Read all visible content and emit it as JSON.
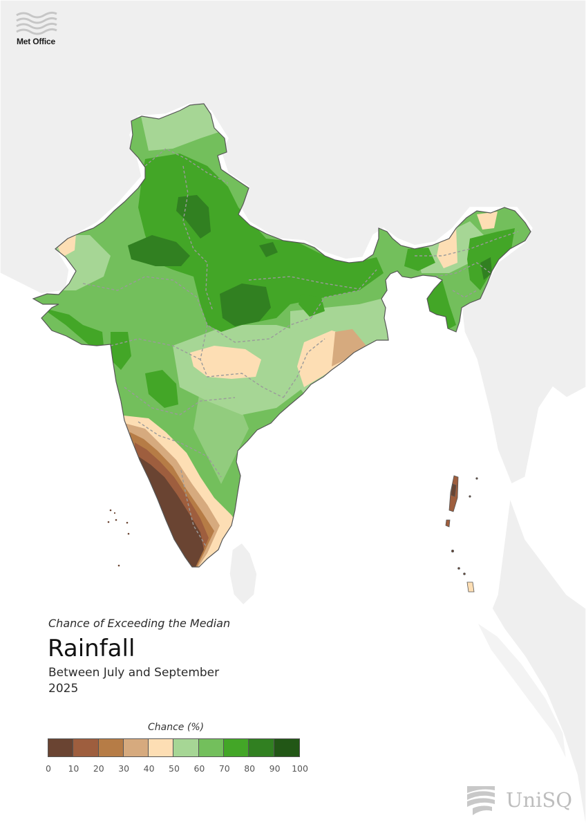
{
  "branding": {
    "publisher": "Met Office",
    "partner": "UniSQ"
  },
  "heading": {
    "subtitle": "Chance of Exceeding the Median",
    "title": "Rainfall",
    "period_line1": "Between July and September",
    "period_line2": "2025"
  },
  "legend": {
    "title": "Chance (%)",
    "ticks": [
      "0",
      "10",
      "20",
      "30",
      "40",
      "50",
      "60",
      "70",
      "80",
      "90",
      "100"
    ],
    "colors": [
      "#6a4432",
      "#9e5e3e",
      "#b67c46",
      "#d6aa7e",
      "#fddeb4",
      "#a6d695",
      "#73bf5c",
      "#43a627",
      "#318021",
      "#225716"
    ]
  },
  "map_colors": {
    "background": "#ffffff",
    "neighbor_land": "#efefef",
    "border": "#9a9a9a",
    "coast": "#555555"
  },
  "map_features": {
    "country": "India",
    "neighbors": [
      "Pakistan",
      "Nepal",
      "Bangladesh",
      "Myanmar",
      "Sri Lanka",
      "China",
      "Thailand"
    ],
    "islands": [
      "Andaman and Nicobar Islands",
      "Lakshadweep"
    ]
  }
}
